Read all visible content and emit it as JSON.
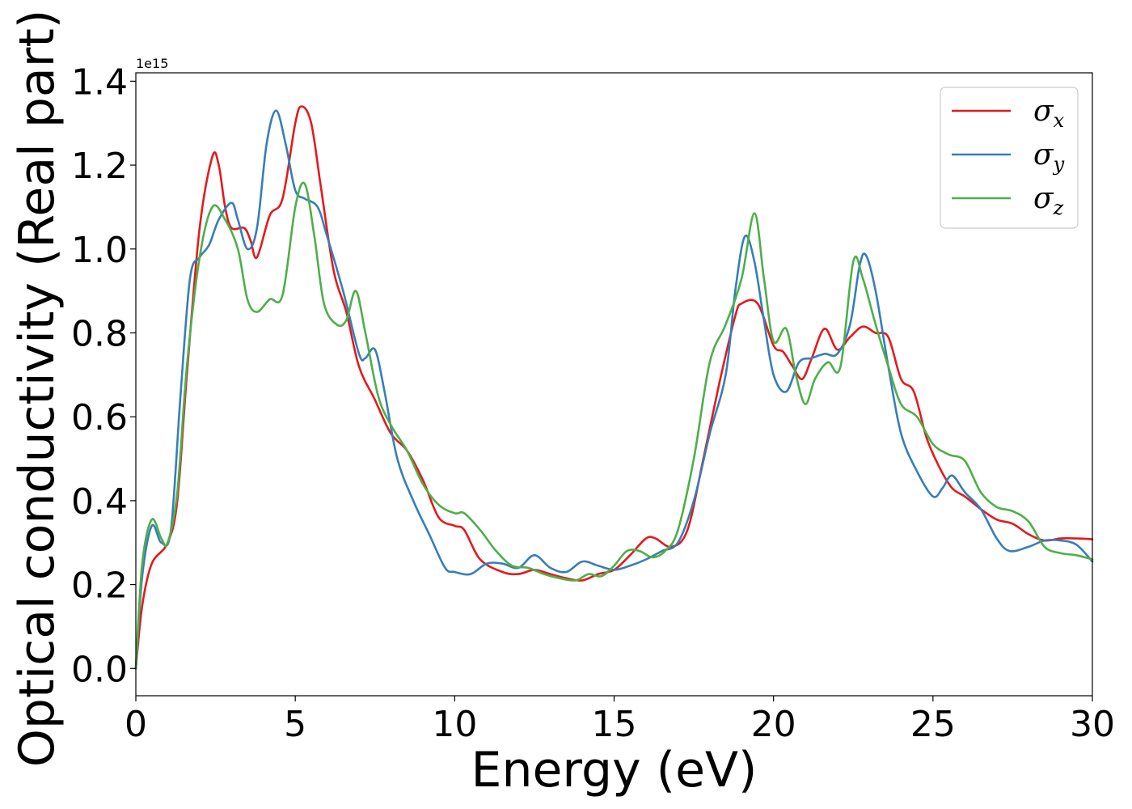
{
  "chart_data": {
    "type": "line",
    "xlabel": "Energy (eV)",
    "ylabel": "Optical conductivity (Real part)",
    "y_offset_label": "1e15",
    "y_scale": 1000000000000000.0,
    "xlim": [
      0,
      30
    ],
    "ylim": [
      -0.065,
      1.42
    ],
    "x_ticks": [
      0,
      5,
      10,
      15,
      20,
      25,
      30
    ],
    "x_tick_labels": [
      "0",
      "5",
      "10",
      "15",
      "20",
      "25",
      "30"
    ],
    "y_ticks": [
      0.0,
      0.2,
      0.4,
      0.6,
      0.8,
      1.0,
      1.2,
      1.4
    ],
    "y_tick_labels": [
      "0.0",
      "0.2",
      "0.4",
      "0.6",
      "0.8",
      "1.0",
      "1.2",
      "1.4"
    ],
    "grid": false,
    "legend_position": "top-right",
    "series": [
      {
        "name": "σx",
        "label_base": "σ",
        "label_sub": "x",
        "color": "#e41a1c",
        "points": [
          [
            0,
            0
          ],
          [
            0.2,
            0.15
          ],
          [
            0.5,
            0.25
          ],
          [
            1.0,
            0.3
          ],
          [
            1.3,
            0.4
          ],
          [
            1.6,
            0.7
          ],
          [
            2.0,
            1.05
          ],
          [
            2.4,
            1.22
          ],
          [
            2.6,
            1.2
          ],
          [
            2.8,
            1.1
          ],
          [
            3.0,
            1.05
          ],
          [
            3.4,
            1.05
          ],
          [
            3.6,
            1.02
          ],
          [
            3.8,
            0.98
          ],
          [
            4.2,
            1.08
          ],
          [
            4.6,
            1.12
          ],
          [
            5.0,
            1.3
          ],
          [
            5.2,
            1.34
          ],
          [
            5.5,
            1.3
          ],
          [
            5.8,
            1.15
          ],
          [
            6.2,
            0.95
          ],
          [
            6.6,
            0.85
          ],
          [
            7.0,
            0.72
          ],
          [
            7.5,
            0.64
          ],
          [
            8.0,
            0.56
          ],
          [
            8.5,
            0.52
          ],
          [
            9.0,
            0.45
          ],
          [
            9.5,
            0.36
          ],
          [
            10.0,
            0.34
          ],
          [
            10.3,
            0.33
          ],
          [
            10.8,
            0.26
          ],
          [
            11.5,
            0.23
          ],
          [
            12.0,
            0.225
          ],
          [
            12.5,
            0.235
          ],
          [
            13.0,
            0.225
          ],
          [
            13.5,
            0.215
          ],
          [
            14.0,
            0.21
          ],
          [
            14.5,
            0.225
          ],
          [
            15.0,
            0.235
          ],
          [
            15.5,
            0.27
          ],
          [
            16.0,
            0.31
          ],
          [
            16.3,
            0.31
          ],
          [
            16.8,
            0.29
          ],
          [
            17.3,
            0.33
          ],
          [
            17.8,
            0.5
          ],
          [
            18.3,
            0.68
          ],
          [
            18.8,
            0.84
          ],
          [
            19.0,
            0.87
          ],
          [
            19.5,
            0.87
          ],
          [
            20.0,
            0.77
          ],
          [
            20.3,
            0.755
          ],
          [
            20.6,
            0.72
          ],
          [
            20.9,
            0.69
          ],
          [
            21.2,
            0.74
          ],
          [
            21.6,
            0.81
          ],
          [
            22.0,
            0.76
          ],
          [
            22.4,
            0.79
          ],
          [
            22.8,
            0.815
          ],
          [
            23.2,
            0.8
          ],
          [
            23.6,
            0.79
          ],
          [
            24.0,
            0.69
          ],
          [
            24.4,
            0.66
          ],
          [
            24.8,
            0.55
          ],
          [
            25.2,
            0.48
          ],
          [
            25.6,
            0.43
          ],
          [
            26.0,
            0.41
          ],
          [
            26.5,
            0.38
          ],
          [
            27.0,
            0.355
          ],
          [
            27.5,
            0.345
          ],
          [
            28.0,
            0.32
          ],
          [
            28.5,
            0.305
          ],
          [
            29.0,
            0.31
          ],
          [
            29.5,
            0.31
          ],
          [
            30.0,
            0.308
          ]
        ]
      },
      {
        "name": "σy",
        "label_base": "σ",
        "label_sub": "y",
        "color": "#377eb8",
        "points": [
          [
            0,
            0
          ],
          [
            0.2,
            0.22
          ],
          [
            0.5,
            0.34
          ],
          [
            0.8,
            0.3
          ],
          [
            1.1,
            0.33
          ],
          [
            1.4,
            0.65
          ],
          [
            1.7,
            0.93
          ],
          [
            2.0,
            0.98
          ],
          [
            2.3,
            1.01
          ],
          [
            2.6,
            1.07
          ],
          [
            3.0,
            1.11
          ],
          [
            3.2,
            1.07
          ],
          [
            3.5,
            1.0
          ],
          [
            3.8,
            1.05
          ],
          [
            4.1,
            1.25
          ],
          [
            4.4,
            1.33
          ],
          [
            4.7,
            1.25
          ],
          [
            5.0,
            1.14
          ],
          [
            5.3,
            1.12
          ],
          [
            5.7,
            1.1
          ],
          [
            6.0,
            1.03
          ],
          [
            6.5,
            0.9
          ],
          [
            7.0,
            0.75
          ],
          [
            7.2,
            0.74
          ],
          [
            7.5,
            0.76
          ],
          [
            7.8,
            0.66
          ],
          [
            8.2,
            0.5
          ],
          [
            8.7,
            0.4
          ],
          [
            9.2,
            0.32
          ],
          [
            9.7,
            0.24
          ],
          [
            10.0,
            0.23
          ],
          [
            10.5,
            0.225
          ],
          [
            11.0,
            0.25
          ],
          [
            11.5,
            0.25
          ],
          [
            12.0,
            0.24
          ],
          [
            12.5,
            0.27
          ],
          [
            13.0,
            0.24
          ],
          [
            13.5,
            0.23
          ],
          [
            14.0,
            0.255
          ],
          [
            14.5,
            0.245
          ],
          [
            15.0,
            0.235
          ],
          [
            15.5,
            0.245
          ],
          [
            16.0,
            0.26
          ],
          [
            16.5,
            0.28
          ],
          [
            17.0,
            0.3
          ],
          [
            17.5,
            0.4
          ],
          [
            18.0,
            0.56
          ],
          [
            18.5,
            0.7
          ],
          [
            18.8,
            0.9
          ],
          [
            19.1,
            1.03
          ],
          [
            19.4,
            0.97
          ],
          [
            19.7,
            0.83
          ],
          [
            20.0,
            0.7
          ],
          [
            20.4,
            0.66
          ],
          [
            20.8,
            0.73
          ],
          [
            21.2,
            0.74
          ],
          [
            21.6,
            0.75
          ],
          [
            22.0,
            0.75
          ],
          [
            22.4,
            0.82
          ],
          [
            22.7,
            0.96
          ],
          [
            22.9,
            0.985
          ],
          [
            23.2,
            0.9
          ],
          [
            23.6,
            0.72
          ],
          [
            24.0,
            0.56
          ],
          [
            24.5,
            0.47
          ],
          [
            25.0,
            0.41
          ],
          [
            25.3,
            0.43
          ],
          [
            25.6,
            0.46
          ],
          [
            26.0,
            0.42
          ],
          [
            26.5,
            0.38
          ],
          [
            27.0,
            0.31
          ],
          [
            27.4,
            0.28
          ],
          [
            28.0,
            0.29
          ],
          [
            28.5,
            0.305
          ],
          [
            29.0,
            0.305
          ],
          [
            29.5,
            0.295
          ],
          [
            30.0,
            0.255
          ]
        ]
      },
      {
        "name": "σz",
        "label_base": "σ",
        "label_sub": "z",
        "color": "#4daf4a",
        "points": [
          [
            0,
            0
          ],
          [
            0.2,
            0.25
          ],
          [
            0.5,
            0.355
          ],
          [
            0.8,
            0.31
          ],
          [
            1.0,
            0.3
          ],
          [
            1.3,
            0.42
          ],
          [
            1.6,
            0.72
          ],
          [
            2.0,
            0.98
          ],
          [
            2.4,
            1.1
          ],
          [
            2.8,
            1.07
          ],
          [
            3.2,
            1.0
          ],
          [
            3.5,
            0.88
          ],
          [
            3.8,
            0.85
          ],
          [
            4.2,
            0.88
          ],
          [
            4.6,
            0.89
          ],
          [
            5.0,
            1.1
          ],
          [
            5.3,
            1.155
          ],
          [
            5.6,
            1.03
          ],
          [
            5.9,
            0.87
          ],
          [
            6.3,
            0.82
          ],
          [
            6.6,
            0.83
          ],
          [
            6.9,
            0.9
          ],
          [
            7.2,
            0.8
          ],
          [
            7.6,
            0.65
          ],
          [
            8.0,
            0.58
          ],
          [
            8.5,
            0.52
          ],
          [
            9.0,
            0.44
          ],
          [
            9.5,
            0.39
          ],
          [
            10.0,
            0.37
          ],
          [
            10.3,
            0.37
          ],
          [
            10.8,
            0.33
          ],
          [
            11.3,
            0.28
          ],
          [
            11.8,
            0.245
          ],
          [
            12.3,
            0.24
          ],
          [
            12.8,
            0.225
          ],
          [
            13.3,
            0.215
          ],
          [
            13.8,
            0.21
          ],
          [
            14.2,
            0.225
          ],
          [
            14.6,
            0.22
          ],
          [
            15.0,
            0.245
          ],
          [
            15.4,
            0.28
          ],
          [
            15.8,
            0.28
          ],
          [
            16.2,
            0.265
          ],
          [
            16.6,
            0.28
          ],
          [
            17.0,
            0.33
          ],
          [
            17.5,
            0.5
          ],
          [
            18.0,
            0.73
          ],
          [
            18.5,
            0.82
          ],
          [
            19.0,
            0.93
          ],
          [
            19.4,
            1.085
          ],
          [
            19.7,
            0.93
          ],
          [
            20.0,
            0.78
          ],
          [
            20.4,
            0.81
          ],
          [
            20.7,
            0.7
          ],
          [
            21.0,
            0.63
          ],
          [
            21.3,
            0.69
          ],
          [
            21.7,
            0.73
          ],
          [
            22.1,
            0.72
          ],
          [
            22.5,
            0.97
          ],
          [
            22.8,
            0.93
          ],
          [
            23.2,
            0.82
          ],
          [
            23.6,
            0.72
          ],
          [
            24.0,
            0.63
          ],
          [
            24.5,
            0.6
          ],
          [
            25.0,
            0.535
          ],
          [
            25.5,
            0.51
          ],
          [
            26.0,
            0.495
          ],
          [
            26.5,
            0.42
          ],
          [
            27.0,
            0.385
          ],
          [
            27.5,
            0.375
          ],
          [
            28.0,
            0.35
          ],
          [
            28.5,
            0.29
          ],
          [
            29.0,
            0.275
          ],
          [
            29.5,
            0.27
          ],
          [
            30.0,
            0.26
          ]
        ]
      }
    ]
  }
}
